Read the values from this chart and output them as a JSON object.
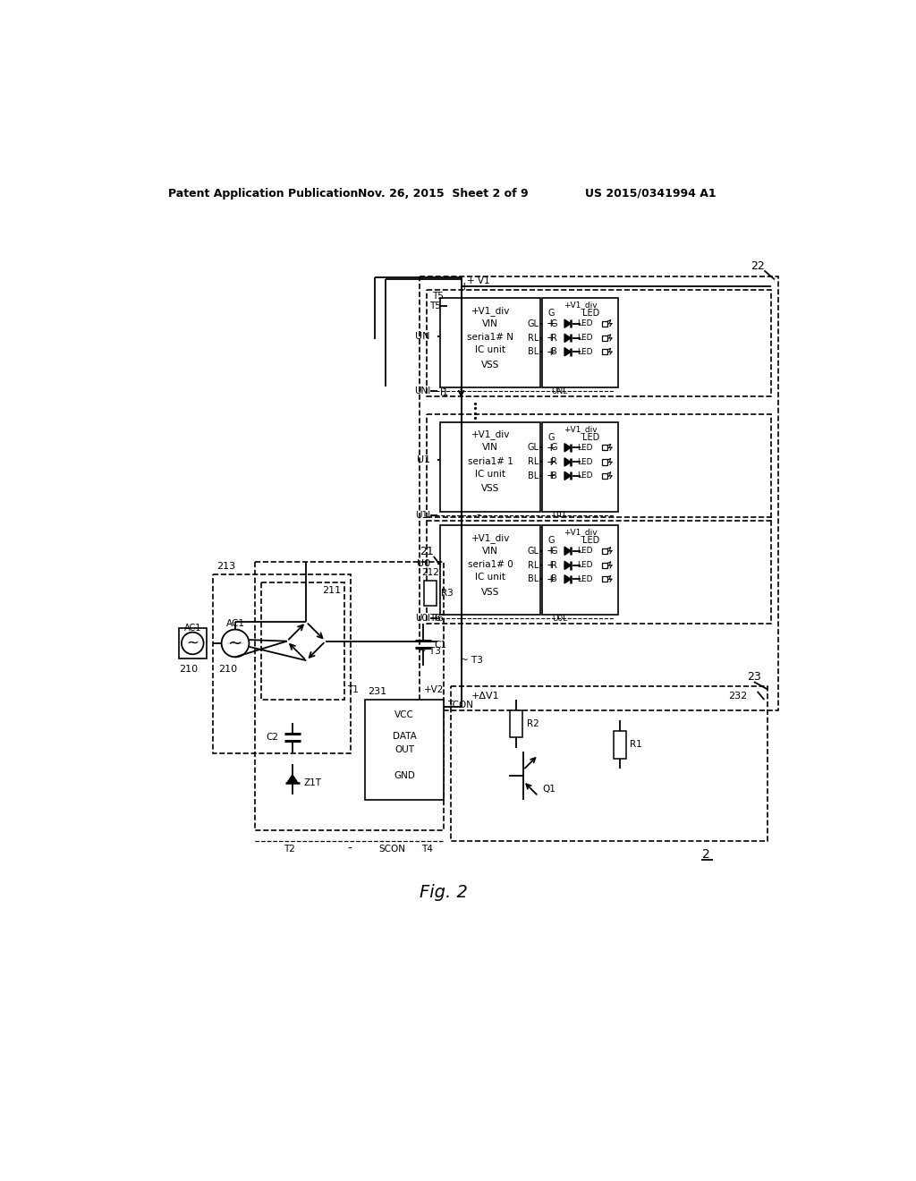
{
  "title_left": "Patent Application Publication",
  "title_mid": "Nov. 26, 2015  Sheet 2 of 9",
  "title_right": "US 2015/0341994 A1",
  "fig_label": "Fig. 2",
  "bg_color": "#ffffff"
}
